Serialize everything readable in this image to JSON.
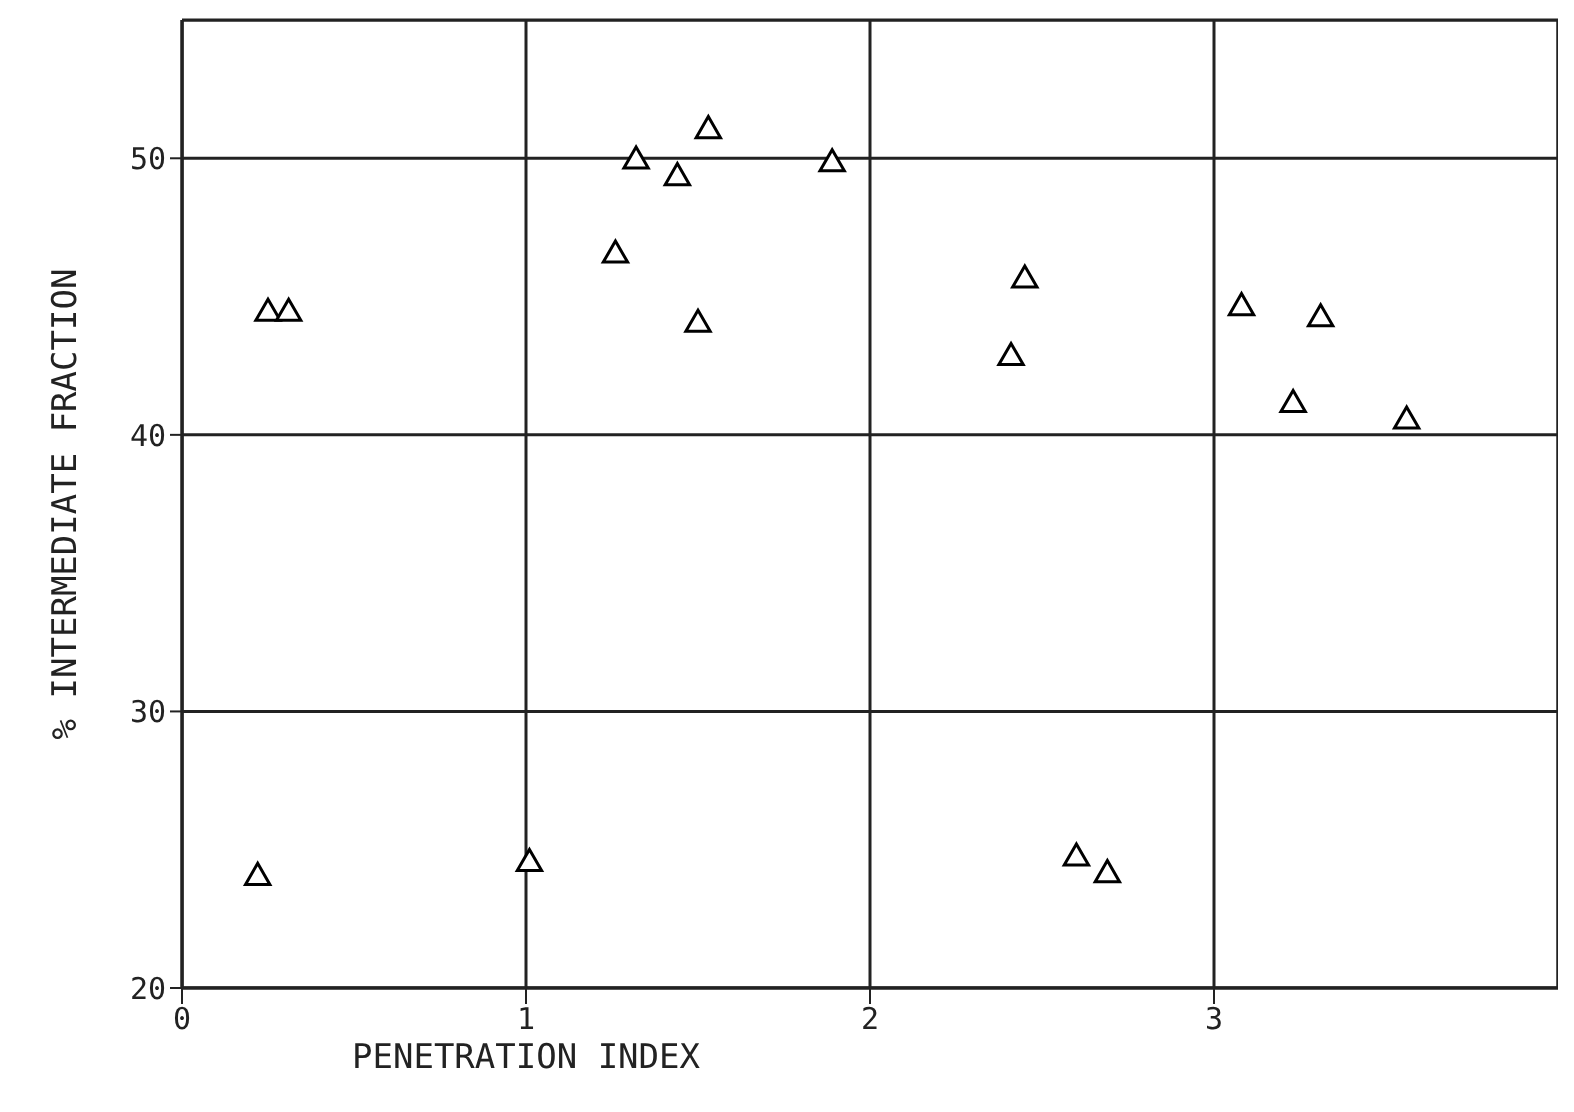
{
  "chart_data": {
    "type": "scatter",
    "xlabel": "PENETRATION INDEX",
    "ylabel": "% INTERMEDIATE FRACTION",
    "x": [
      0.22,
      0.25,
      0.31,
      1.01,
      1.26,
      1.32,
      1.44,
      1.5,
      1.53,
      1.89,
      2.41,
      2.45,
      2.6,
      2.69,
      3.08,
      3.23,
      3.31,
      3.56
    ],
    "series": [
      {
        "color": "#000000",
        "values": [
          24.0,
          44.4,
          44.4,
          24.5,
          46.5,
          49.9,
          49.3,
          44.0,
          51.0,
          49.8,
          42.8,
          45.6,
          24.7,
          24.1,
          44.6,
          41.1,
          44.2,
          40.5
        ]
      }
    ],
    "xlim": [
      0,
      4
    ],
    "xticks": [
      0,
      1,
      2,
      3
    ],
    "ylim": [
      20,
      55
    ],
    "yticks": [
      20,
      30,
      40,
      50
    ],
    "grid": true,
    "marker": "triangle"
  }
}
